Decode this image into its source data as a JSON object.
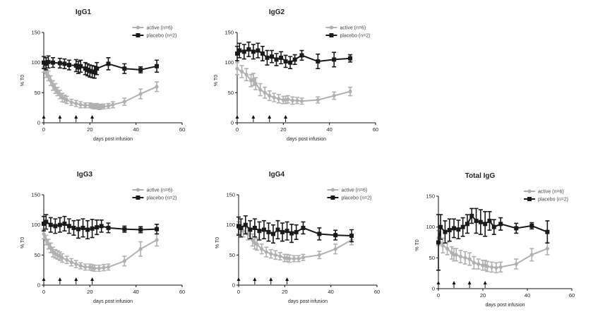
{
  "chart_data": [
    {
      "type": "line",
      "title": "IgG1",
      "xlabel": "days post infusion",
      "ylabel": "% T0",
      "xlim": [
        0,
        60
      ],
      "ylim": [
        0,
        150
      ],
      "xticks": [
        "0",
        "20",
        "40",
        "60"
      ],
      "yticks": [
        "0",
        "50",
        "100",
        "150"
      ],
      "arrows_at_days": [
        0,
        7,
        14,
        21
      ],
      "legend_position": "top-right",
      "series": [
        {
          "name": "active (n=6)",
          "color": "#b0b0b0",
          "x": [
            0,
            1,
            2,
            3,
            4,
            5,
            6,
            7,
            8,
            9,
            10,
            12,
            14,
            16,
            18,
            20,
            21,
            22,
            23,
            24,
            25,
            26,
            28,
            30,
            35,
            42,
            49
          ],
          "y": [
            92,
            83,
            78,
            70,
            62,
            57,
            52,
            47,
            42,
            40,
            38,
            34,
            32,
            30,
            29,
            29,
            28,
            27,
            28,
            26,
            27,
            27,
            28,
            30,
            35,
            48,
            60
          ],
          "err": [
            8,
            8,
            8,
            8,
            8,
            8,
            7,
            7,
            7,
            6,
            6,
            5,
            5,
            5,
            4,
            4,
            4,
            4,
            4,
            4,
            4,
            4,
            4,
            5,
            6,
            8,
            8
          ]
        },
        {
          "name": "placebo (n=2)",
          "color": "#1a1a1a",
          "x": [
            0,
            1,
            2,
            4,
            7,
            9,
            11,
            14,
            15,
            16,
            18,
            19,
            20,
            21,
            22,
            23,
            28,
            35,
            42,
            49
          ],
          "y": [
            100,
            98,
            101,
            100,
            99,
            98,
            96,
            95,
            92,
            94,
            90,
            88,
            86,
            85,
            84,
            90,
            98,
            90,
            88,
            94
          ],
          "err": [
            10,
            10,
            10,
            8,
            8,
            8,
            8,
            10,
            10,
            10,
            10,
            10,
            10,
            10,
            10,
            10,
            10,
            8,
            5,
            10
          ]
        }
      ]
    },
    {
      "type": "line",
      "title": "IgG2",
      "xlabel": "days post infusion",
      "ylabel": "% T0",
      "xlim": [
        0,
        60
      ],
      "ylim": [
        0,
        150
      ],
      "xticks": [
        "0",
        "20",
        "40",
        "60"
      ],
      "yticks": [
        "0",
        "50",
        "100",
        "150"
      ],
      "arrows_at_days": [
        0,
        7,
        14,
        21
      ],
      "legend_position": "top-right",
      "series": [
        {
          "name": "active (n=6)",
          "color": "#b0b0b0",
          "x": [
            0,
            2,
            4,
            6,
            7,
            8,
            10,
            12,
            14,
            16,
            18,
            20,
            21,
            22,
            24,
            26,
            28,
            35,
            42,
            49
          ],
          "y": [
            90,
            85,
            80,
            70,
            72,
            65,
            55,
            50,
            45,
            42,
            40,
            38,
            38,
            39,
            37,
            37,
            36,
            38,
            45,
            52
          ],
          "err": [
            10,
            10,
            10,
            10,
            10,
            10,
            10,
            9,
            8,
            7,
            7,
            6,
            6,
            6,
            6,
            5,
            5,
            5,
            6,
            7
          ]
        },
        {
          "name": "placebo (n=2)",
          "color": "#1a1a1a",
          "x": [
            0,
            1,
            3,
            5,
            7,
            9,
            11,
            13,
            15,
            17,
            19,
            21,
            23,
            25,
            28,
            35,
            42,
            49
          ],
          "y": [
            115,
            120,
            118,
            122,
            118,
            120,
            115,
            108,
            110,
            105,
            108,
            102,
            100,
            105,
            112,
            102,
            105,
            107
          ],
          "err": [
            12,
            12,
            12,
            12,
            12,
            12,
            12,
            12,
            10,
            10,
            10,
            10,
            10,
            8,
            8,
            12,
            12,
            6
          ]
        }
      ]
    },
    {
      "type": "line",
      "title": "IgG3",
      "xlabel": "days post infusion",
      "ylabel": "% T0",
      "xlim": [
        0,
        60
      ],
      "ylim": [
        0,
        150
      ],
      "xticks": [
        "0",
        "20",
        "40",
        "60"
      ],
      "yticks": [
        "0",
        "50",
        "100",
        "150"
      ],
      "arrows_at_days": [
        0,
        7,
        14,
        21
      ],
      "legend_position": "top-right",
      "series": [
        {
          "name": "active (n=6)",
          "color": "#b0b0b0",
          "x": [
            0,
            1,
            2,
            3,
            4,
            5,
            6,
            7,
            8,
            10,
            12,
            14,
            16,
            18,
            20,
            21,
            22,
            24,
            26,
            28,
            35,
            42,
            49
          ],
          "y": [
            85,
            75,
            68,
            62,
            55,
            52,
            50,
            48,
            45,
            42,
            38,
            35,
            32,
            30,
            30,
            29,
            28,
            28,
            29,
            30,
            40,
            60,
            75
          ],
          "err": [
            8,
            8,
            8,
            8,
            8,
            7,
            7,
            7,
            7,
            6,
            6,
            6,
            5,
            5,
            5,
            5,
            5,
            5,
            5,
            5,
            8,
            12,
            10
          ]
        },
        {
          "name": "placebo (n=2)",
          "color": "#1a1a1a",
          "x": [
            0,
            1,
            3,
            5,
            7,
            9,
            11,
            13,
            15,
            17,
            19,
            21,
            23,
            25,
            28,
            35,
            42,
            49
          ],
          "y": [
            102,
            105,
            100,
            98,
            100,
            102,
            98,
            95,
            93,
            95,
            92,
            94,
            96,
            98,
            95,
            93,
            92,
            93
          ],
          "err": [
            12,
            12,
            12,
            12,
            12,
            12,
            12,
            12,
            15,
            15,
            15,
            15,
            12,
            10,
            8,
            5,
            5,
            8
          ]
        }
      ]
    },
    {
      "type": "line",
      "title": "IgG4",
      "xlabel": "days post infusion",
      "ylabel": "% T0",
      "xlim": [
        0,
        60
      ],
      "ylim": [
        0,
        150
      ],
      "xticks": [
        "0",
        "20",
        "40",
        "60"
      ],
      "yticks": [
        "0",
        "50",
        "100",
        "150"
      ],
      "arrows_at_days": [
        0,
        7,
        14,
        21
      ],
      "legend_position": "top-right",
      "series": [
        {
          "name": "active (n=6)",
          "color": "#b0b0b0",
          "x": [
            0,
            2,
            4,
            6,
            7,
            8,
            10,
            12,
            14,
            16,
            18,
            20,
            21,
            22,
            24,
            26,
            28,
            35,
            42,
            49
          ],
          "y": [
            95,
            90,
            85,
            75,
            70,
            68,
            60,
            55,
            52,
            50,
            48,
            45,
            45,
            44,
            44,
            44,
            46,
            50,
            60,
            75
          ],
          "err": [
            10,
            10,
            10,
            10,
            10,
            10,
            8,
            8,
            7,
            7,
            6,
            6,
            6,
            6,
            5,
            5,
            5,
            6,
            8,
            8
          ]
        },
        {
          "name": "placebo (n=2)",
          "color": "#1a1a1a",
          "x": [
            0,
            1,
            3,
            5,
            7,
            9,
            11,
            13,
            15,
            17,
            19,
            21,
            23,
            25,
            28,
            35,
            42,
            49
          ],
          "y": [
            98,
            95,
            100,
            92,
            95,
            90,
            92,
            88,
            85,
            92,
            88,
            90,
            86,
            88,
            95,
            85,
            83,
            82
          ],
          "err": [
            15,
            15,
            15,
            15,
            15,
            15,
            15,
            15,
            15,
            15,
            15,
            15,
            15,
            12,
            10,
            10,
            8,
            10
          ]
        }
      ]
    },
    {
      "type": "line",
      "title": "Total IgG",
      "xlabel": "days post infusion",
      "ylabel": "% T0",
      "xlim": [
        0,
        60
      ],
      "ylim": [
        0,
        150
      ],
      "xticks": [
        "0",
        "20",
        "40",
        "60"
      ],
      "yticks": [
        "0",
        "50",
        "100",
        "150"
      ],
      "arrows_at_days": [
        0,
        7,
        14,
        21
      ],
      "legend_position": "top-right",
      "series": [
        {
          "name": "active (n=6)",
          "color": "#b0b0b0",
          "x": [
            0,
            2,
            4,
            6,
            7,
            8,
            10,
            12,
            14,
            16,
            18,
            20,
            21,
            22,
            24,
            26,
            28,
            35,
            42,
            49
          ],
          "y": [
            82,
            70,
            65,
            58,
            55,
            55,
            52,
            50,
            48,
            42,
            40,
            38,
            38,
            36,
            35,
            34,
            35,
            40,
            55,
            65
          ],
          "err": [
            12,
            12,
            10,
            10,
            10,
            10,
            10,
            10,
            10,
            10,
            8,
            8,
            8,
            8,
            8,
            8,
            8,
            8,
            10,
            10
          ]
        },
        {
          "name": "placebo (n=2)",
          "color": "#1a1a1a",
          "x": [
            0,
            1,
            3,
            5,
            7,
            9,
            11,
            13,
            15,
            17,
            19,
            21,
            23,
            25,
            28,
            35,
            42,
            49
          ],
          "y": [
            75,
            100,
            92,
            95,
            98,
            96,
            100,
            105,
            118,
            110,
            108,
            105,
            110,
            100,
            105,
            98,
            102,
            92
          ],
          "err": [
            45,
            20,
            18,
            18,
            15,
            15,
            15,
            15,
            12,
            20,
            20,
            20,
            15,
            12,
            10,
            8,
            5,
            18
          ]
        }
      ]
    }
  ]
}
